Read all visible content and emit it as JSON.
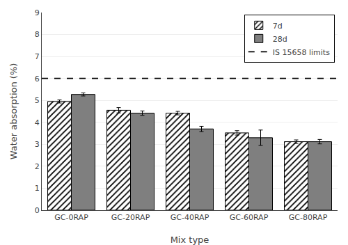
{
  "chart_data": {
    "type": "bar",
    "xlabel": "Mix type",
    "ylabel": "Water absorption (%)",
    "categories": [
      "GC-0RAP",
      "GC-20RAP",
      "GC-40RAP",
      "GC-60RAP",
      "GC-80RAP"
    ],
    "series": [
      {
        "name": "7d",
        "color": "white",
        "marker": "hatched",
        "values": [
          4.95,
          4.55,
          4.42,
          3.52,
          3.12
        ],
        "errors": [
          0.07,
          0.12,
          0.08,
          0.1,
          0.08
        ]
      },
      {
        "name": "28d",
        "color": "#7f7f7f",
        "values": [
          5.27,
          4.42,
          3.7,
          3.3,
          3.12
        ],
        "errors": [
          0.07,
          0.1,
          0.12,
          0.35,
          0.1
        ]
      }
    ],
    "reference_lines": [
      {
        "name": "IS 15658 limits",
        "value": 6.0,
        "color": "black",
        "line_style": "dashed"
      }
    ],
    "ylim": [
      0,
      9
    ],
    "yticks": [
      0,
      1,
      2,
      3,
      4,
      5,
      6,
      7,
      8,
      9
    ],
    "grid": true,
    "legend": "upper right"
  }
}
